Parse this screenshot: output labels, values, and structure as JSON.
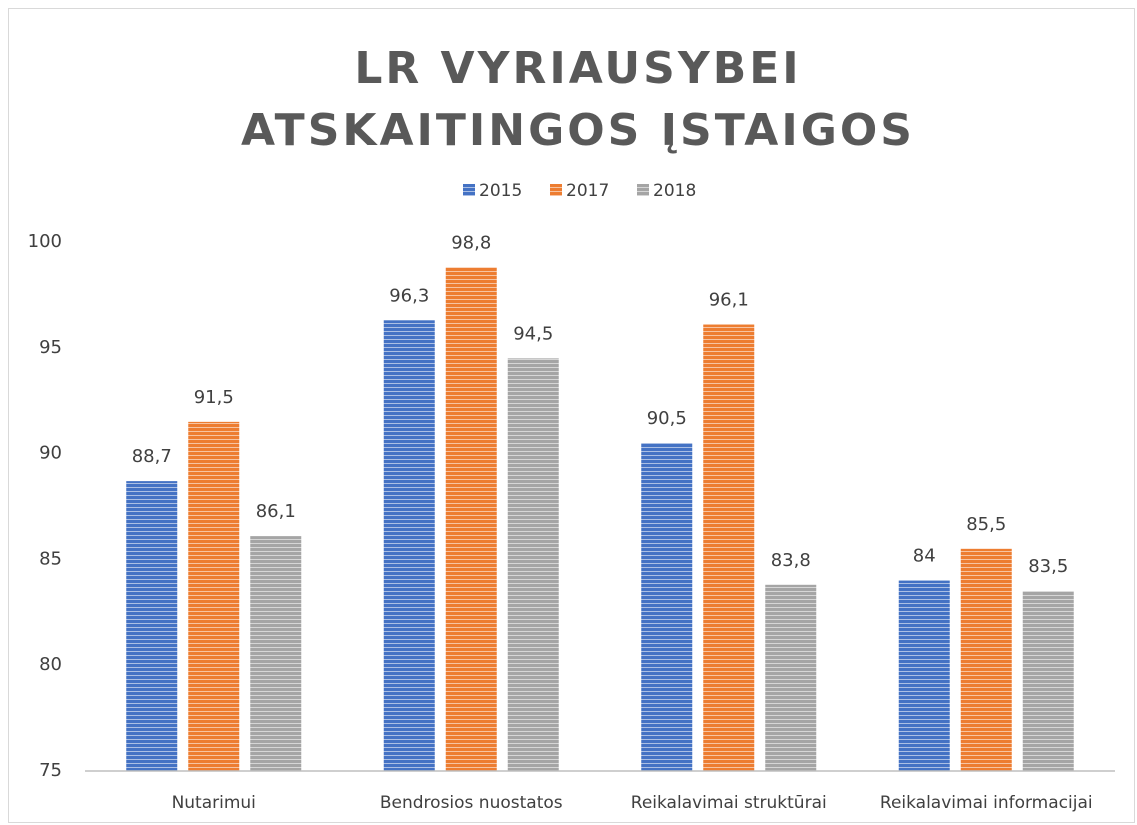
{
  "chart_data": {
    "type": "bar",
    "title": "LR VYRIAUSYBEI ATSKAITINGOS ĮSTAIGOS",
    "categories": [
      "Nutarimui",
      "Bendrosios nuostatos",
      "Reikalavimai struktūrai",
      "Reikalavimai informacijai"
    ],
    "series": [
      {
        "name": "2015",
        "color": "#4472c4",
        "values": [
          88.7,
          96.3,
          90.5,
          84
        ],
        "value_labels": [
          "88,7",
          "96,3",
          "90,5",
          "84"
        ]
      },
      {
        "name": "2017",
        "color": "#ed7d31",
        "values": [
          91.5,
          98.8,
          96.1,
          85.5
        ],
        "value_labels": [
          "91,5",
          "98,8",
          "96,1",
          "85,5"
        ]
      },
      {
        "name": "2018",
        "color": "#a5a5a5",
        "values": [
          86.1,
          94.5,
          83.8,
          83.5
        ],
        "value_labels": [
          "86,1",
          "94,5",
          "83,8",
          "83,5"
        ]
      }
    ],
    "ylim": [
      75,
      100
    ],
    "yticks": [
      75,
      80,
      85,
      90,
      95,
      100
    ],
    "grid": false,
    "legend": "top"
  }
}
